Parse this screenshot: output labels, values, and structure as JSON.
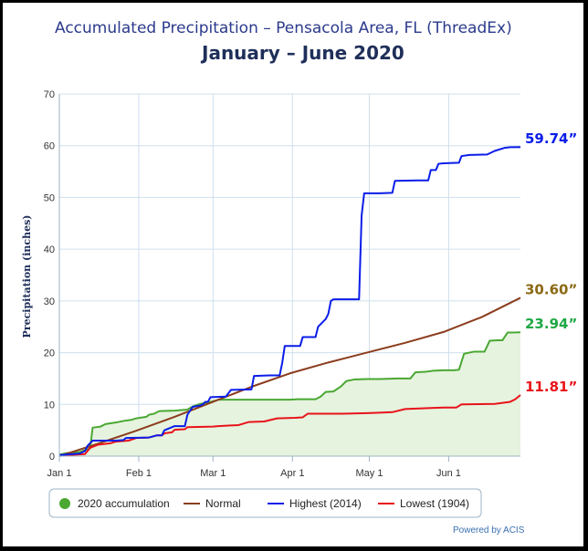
{
  "chart_data": {
    "type": "line",
    "title": "Accumulated Precipitation – Pensacola Area, FL (ThreadEx)",
    "subtitle": "January – June 2020",
    "ylabel": "Precipitation (inches)",
    "xlabel": "",
    "ylim": [
      0,
      70
    ],
    "yticks": [
      "0",
      "10",
      "20",
      "30",
      "40",
      "50",
      "60",
      "70"
    ],
    "x_domain_days": [
      0,
      180
    ],
    "x_ticks": [
      {
        "label": "Jan 1",
        "day": 0
      },
      {
        "label": "Feb 1",
        "day": 31
      },
      {
        "label": "Mar 1",
        "day": 60
      },
      {
        "label": "Apr 1",
        "day": 91
      },
      {
        "label": "May 1",
        "day": 121
      },
      {
        "label": "Jun 1",
        "day": 152
      }
    ],
    "grid": true,
    "legend_position": "bottom",
    "series": [
      {
        "name": "2020 accumulation",
        "color": "#4aa832",
        "fill": "#e6f3df",
        "end_label": "23.94”",
        "end_label_color": "#1ea845",
        "points": [
          [
            0,
            0.3
          ],
          [
            3,
            0.6
          ],
          [
            8,
            0.8
          ],
          [
            12,
            1.5
          ],
          [
            13,
            5.5
          ],
          [
            16,
            5.7
          ],
          [
            18,
            6.2
          ],
          [
            22,
            6.5
          ],
          [
            25,
            6.8
          ],
          [
            28,
            7.0
          ],
          [
            30,
            7.3
          ],
          [
            34,
            7.6
          ],
          [
            35,
            8.0
          ],
          [
            36,
            8.1
          ],
          [
            37,
            8.2
          ],
          [
            39,
            8.7
          ],
          [
            45,
            8.8
          ],
          [
            50,
            9.0
          ],
          [
            52,
            9.6
          ],
          [
            55,
            10.1
          ],
          [
            58,
            10.4
          ],
          [
            60,
            10.6
          ],
          [
            62,
            10.9
          ],
          [
            70,
            10.9
          ],
          [
            80,
            10.9
          ],
          [
            90,
            10.9
          ],
          [
            93,
            11.0
          ],
          [
            100,
            11.0
          ],
          [
            102,
            11.5
          ],
          [
            104,
            12.4
          ],
          [
            107,
            12.5
          ],
          [
            110,
            13.5
          ],
          [
            112,
            14.5
          ],
          [
            115,
            14.8
          ],
          [
            120,
            14.9
          ],
          [
            125,
            14.9
          ],
          [
            132,
            15.0
          ],
          [
            137,
            15.0
          ],
          [
            139,
            16.2
          ],
          [
            143,
            16.3
          ],
          [
            146,
            16.5
          ],
          [
            150,
            16.6
          ],
          [
            154,
            16.6
          ],
          [
            156,
            16.7
          ],
          [
            158,
            19.8
          ],
          [
            160,
            20.0
          ],
          [
            162,
            20.2
          ],
          [
            166,
            20.2
          ],
          [
            168,
            22.3
          ],
          [
            171,
            22.4
          ],
          [
            173,
            22.4
          ],
          [
            175,
            23.9
          ],
          [
            177,
            23.9
          ],
          [
            180,
            23.94
          ]
        ]
      },
      {
        "name": "Normal",
        "color": "#8b3d1d",
        "end_label": "30.60”",
        "end_label_color": "#8b6914",
        "points": [
          [
            0,
            0
          ],
          [
            15,
            2.4
          ],
          [
            30,
            4.9
          ],
          [
            45,
            7.6
          ],
          [
            60,
            10.5
          ],
          [
            75,
            13.4
          ],
          [
            90,
            16.0
          ],
          [
            105,
            18.1
          ],
          [
            120,
            20.0
          ],
          [
            135,
            21.9
          ],
          [
            150,
            24.0
          ],
          [
            165,
            26.9
          ],
          [
            180,
            30.6
          ]
        ]
      },
      {
        "name": "Highest (2014)",
        "color": "#0a1de8",
        "end_label": "59.74”",
        "end_label_color": "#0a1de8",
        "points": [
          [
            0,
            0.2
          ],
          [
            8,
            0.5
          ],
          [
            10,
            1.0
          ],
          [
            11,
            2.0
          ],
          [
            12,
            2.5
          ],
          [
            13,
            3.0
          ],
          [
            15,
            3.0
          ],
          [
            22,
            3.0
          ],
          [
            25,
            3.1
          ],
          [
            26,
            3.5
          ],
          [
            35,
            3.6
          ],
          [
            38,
            4.0
          ],
          [
            40,
            4.0
          ],
          [
            41,
            5.0
          ],
          [
            45,
            5.8
          ],
          [
            49,
            5.8
          ],
          [
            50,
            8.0
          ],
          [
            52,
            9.5
          ],
          [
            55,
            9.8
          ],
          [
            56,
            10.0
          ],
          [
            57,
            10.5
          ],
          [
            58,
            10.5
          ],
          [
            59,
            11.4
          ],
          [
            65,
            11.5
          ],
          [
            67,
            12.8
          ],
          [
            75,
            12.9
          ],
          [
            76,
            15.5
          ],
          [
            82,
            15.6
          ],
          [
            86,
            15.6
          ],
          [
            87,
            18.0
          ],
          [
            88,
            21.3
          ],
          [
            94,
            21.3
          ],
          [
            95,
            23.0
          ],
          [
            100,
            23.0
          ],
          [
            101,
            25.0
          ],
          [
            104,
            26.5
          ],
          [
            105,
            27.5
          ],
          [
            106,
            30.0
          ],
          [
            107,
            30.3
          ],
          [
            113,
            30.3
          ],
          [
            117,
            30.3
          ],
          [
            118,
            46.5
          ],
          [
            119,
            50.8
          ],
          [
            125,
            50.8
          ],
          [
            130,
            50.9
          ],
          [
            131,
            53.2
          ],
          [
            140,
            53.3
          ],
          [
            144,
            53.3
          ],
          [
            145,
            55.3
          ],
          [
            147,
            55.3
          ],
          [
            148,
            56.5
          ],
          [
            150,
            56.6
          ],
          [
            156,
            56.7
          ],
          [
            157,
            58.0
          ],
          [
            160,
            58.2
          ],
          [
            167,
            58.3
          ],
          [
            170,
            59.0
          ],
          [
            174,
            59.6
          ],
          [
            176,
            59.7
          ],
          [
            180,
            59.74
          ]
        ]
      },
      {
        "name": "Lowest (1904)",
        "color": "#e8131a",
        "end_label": "11.81”",
        "end_label_color": "#e8131a",
        "points": [
          [
            0,
            0.1
          ],
          [
            10,
            0.4
          ],
          [
            12,
            1.6
          ],
          [
            15,
            2.2
          ],
          [
            20,
            2.5
          ],
          [
            22,
            2.8
          ],
          [
            27,
            3.0
          ],
          [
            30,
            3.5
          ],
          [
            35,
            3.6
          ],
          [
            38,
            4.0
          ],
          [
            40,
            4.0
          ],
          [
            41,
            4.4
          ],
          [
            44,
            4.6
          ],
          [
            45,
            5.1
          ],
          [
            49,
            5.2
          ],
          [
            50,
            5.6
          ],
          [
            60,
            5.7
          ],
          [
            62,
            5.8
          ],
          [
            70,
            6.0
          ],
          [
            74,
            6.6
          ],
          [
            80,
            6.7
          ],
          [
            85,
            7.3
          ],
          [
            92,
            7.4
          ],
          [
            95,
            7.5
          ],
          [
            97,
            8.2
          ],
          [
            110,
            8.2
          ],
          [
            120,
            8.3
          ],
          [
            125,
            8.4
          ],
          [
            130,
            8.5
          ],
          [
            135,
            9.1
          ],
          [
            145,
            9.3
          ],
          [
            150,
            9.4
          ],
          [
            155,
            9.4
          ],
          [
            157,
            10.0
          ],
          [
            170,
            10.1
          ],
          [
            173,
            10.3
          ],
          [
            176,
            10.5
          ],
          [
            178,
            11.0
          ],
          [
            180,
            11.81
          ]
        ]
      }
    ]
  },
  "legend": {
    "items": [
      {
        "label": "2020 accumulation",
        "color": "#4aa832",
        "kind": "dot"
      },
      {
        "label": "Normal",
        "color": "#8b3d1d",
        "kind": "line"
      },
      {
        "label": "Highest (2014)",
        "color": "#0a1de8",
        "kind": "line"
      },
      {
        "label": "Lowest (1904)",
        "color": "#e8131a",
        "kind": "line"
      }
    ]
  },
  "credit": "Powered by ACIS"
}
